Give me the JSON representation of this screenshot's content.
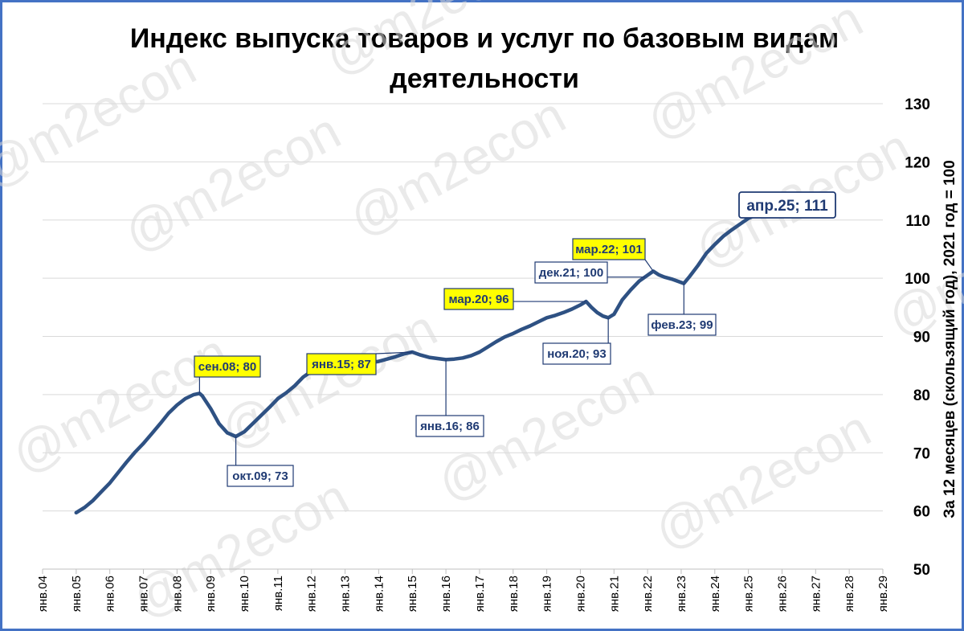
{
  "title": "Индекс выпуска товаров и услуг по базовым видам деятельности",
  "watermark_text": "@m2econ",
  "colors": {
    "frame": "#4472c4",
    "line": "#2e5183",
    "grid": "#d9d9d9",
    "highlight_fill": "#ffff00",
    "callout_border": "#1f3a73",
    "callout_text": "#1f3a73"
  },
  "chart_data": {
    "type": "line",
    "title": "Индекс выпуска товаров и услуг по базовым видам деятельности",
    "ylabel": "За 12 месяцев (скользящий год), 2021 год = 100",
    "xlabel": "",
    "y_axis_position": "right",
    "ylim": [
      50,
      130
    ],
    "yticks": [
      "50",
      "60",
      "70",
      "80",
      "90",
      "100",
      "110",
      "120",
      "130"
    ],
    "x_range": [
      2004,
      2029
    ],
    "xticks": [
      "янв.04",
      "янв.05",
      "янв.06",
      "янв.07",
      "янв.08",
      "янв.09",
      "янв.10",
      "янв.11",
      "янв.12",
      "янв.13",
      "янв.14",
      "янв.15",
      "янв.16",
      "янв.17",
      "янв.18",
      "янв.19",
      "янв.20",
      "янв.21",
      "янв.22",
      "янв.23",
      "янв.24",
      "янв.25",
      "янв.26",
      "янв.27",
      "янв.28",
      "янв.29"
    ],
    "grid": "horizontal",
    "series": [
      {
        "values": [
          [
            2005.0,
            59.7
          ],
          [
            2005.25,
            60.6
          ],
          [
            2005.5,
            61.8
          ],
          [
            2005.75,
            63.3
          ],
          [
            2006.0,
            64.8
          ],
          [
            2006.25,
            66.6
          ],
          [
            2006.5,
            68.4
          ],
          [
            2006.75,
            70.1
          ],
          [
            2007.0,
            71.6
          ],
          [
            2007.25,
            73.3
          ],
          [
            2007.5,
            75.0
          ],
          [
            2007.75,
            76.8
          ],
          [
            2008.0,
            78.2
          ],
          [
            2008.25,
            79.3
          ],
          [
            2008.5,
            80.0
          ],
          [
            2008.67,
            80.2
          ],
          [
            2008.75,
            79.8
          ],
          [
            2009.0,
            77.6
          ],
          [
            2009.25,
            75.0
          ],
          [
            2009.5,
            73.4
          ],
          [
            2009.75,
            72.8
          ],
          [
            2010.0,
            73.6
          ],
          [
            2010.25,
            75.0
          ],
          [
            2010.5,
            76.4
          ],
          [
            2010.75,
            77.8
          ],
          [
            2011.0,
            79.3
          ],
          [
            2011.25,
            80.3
          ],
          [
            2011.5,
            81.5
          ],
          [
            2011.75,
            83.0
          ],
          [
            2012.0,
            84.0
          ],
          [
            2012.25,
            84.7
          ],
          [
            2012.5,
            85.0
          ],
          [
            2012.75,
            85.3
          ],
          [
            2013.0,
            85.9
          ],
          [
            2013.25,
            86.1
          ],
          [
            2013.5,
            85.9
          ],
          [
            2013.75,
            85.5
          ],
          [
            2014.0,
            85.7
          ],
          [
            2014.25,
            86.1
          ],
          [
            2014.5,
            86.5
          ],
          [
            2014.75,
            87.0
          ],
          [
            2015.0,
            87.3
          ],
          [
            2015.25,
            86.8
          ],
          [
            2015.5,
            86.4
          ],
          [
            2015.75,
            86.2
          ],
          [
            2016.0,
            86.0
          ],
          [
            2016.25,
            86.1
          ],
          [
            2016.5,
            86.3
          ],
          [
            2016.75,
            86.7
          ],
          [
            2017.0,
            87.3
          ],
          [
            2017.25,
            88.2
          ],
          [
            2017.5,
            89.1
          ],
          [
            2017.75,
            89.9
          ],
          [
            2018.0,
            90.5
          ],
          [
            2018.25,
            91.2
          ],
          [
            2018.5,
            91.8
          ],
          [
            2018.75,
            92.5
          ],
          [
            2019.0,
            93.2
          ],
          [
            2019.25,
            93.6
          ],
          [
            2019.5,
            94.1
          ],
          [
            2019.75,
            94.7
          ],
          [
            2020.0,
            95.4
          ],
          [
            2020.17,
            96.0
          ],
          [
            2020.33,
            95.0
          ],
          [
            2020.5,
            94.1
          ],
          [
            2020.67,
            93.5
          ],
          [
            2020.83,
            93.2
          ],
          [
            2021.0,
            93.8
          ],
          [
            2021.25,
            96.3
          ],
          [
            2021.5,
            98.0
          ],
          [
            2021.75,
            99.5
          ],
          [
            2021.92,
            100.2
          ],
          [
            2022.17,
            101.2
          ],
          [
            2022.33,
            100.6
          ],
          [
            2022.5,
            100.2
          ],
          [
            2022.75,
            99.8
          ],
          [
            2023.08,
            99.1
          ],
          [
            2023.25,
            100.3
          ],
          [
            2023.5,
            102.2
          ],
          [
            2023.75,
            104.3
          ],
          [
            2024.0,
            105.8
          ],
          [
            2024.25,
            107.2
          ],
          [
            2024.5,
            108.3
          ],
          [
            2024.75,
            109.3
          ],
          [
            2025.0,
            110.3
          ],
          [
            2025.25,
            110.9
          ]
        ]
      }
    ],
    "annotations": [
      {
        "text": "сен.08; 80",
        "x": 2008.67,
        "y": 80.2,
        "highlight": true
      },
      {
        "text": "окт.09; 73",
        "x": 2009.75,
        "y": 72.8,
        "highlight": false
      },
      {
        "text": "янв.15; 87",
        "x": 2015.0,
        "y": 87.3,
        "highlight": true
      },
      {
        "text": "янв.16; 86",
        "x": 2016.0,
        "y": 86.0,
        "highlight": false
      },
      {
        "text": "мар.20; 96",
        "x": 2020.17,
        "y": 96.0,
        "highlight": true
      },
      {
        "text": "ноя.20; 93",
        "x": 2020.83,
        "y": 93.2,
        "highlight": false
      },
      {
        "text": "дек.21; 100",
        "x": 2021.92,
        "y": 100.2,
        "highlight": false
      },
      {
        "text": "мар.22; 101",
        "x": 2022.17,
        "y": 101.2,
        "highlight": true
      },
      {
        "text": "фев.23; 99",
        "x": 2023.08,
        "y": 99.1,
        "highlight": false
      },
      {
        "text": "апр.25; 111",
        "x": 2025.25,
        "y": 110.9,
        "highlight": false,
        "large": true
      }
    ]
  }
}
